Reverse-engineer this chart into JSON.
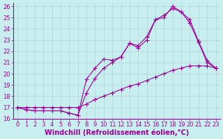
{
  "xlabel": "Windchill (Refroidissement éolien,°C)",
  "ylabel": "",
  "background_color": "#c8eef0",
  "grid_color": "#b0d4d8",
  "line_color": "#990099",
  "xlim": [
    -0.5,
    23.5
  ],
  "ylim": [
    16,
    26.3
  ],
  "xticks": [
    0,
    1,
    2,
    3,
    4,
    5,
    6,
    7,
    8,
    9,
    10,
    11,
    12,
    13,
    14,
    15,
    16,
    17,
    18,
    19,
    20,
    21,
    22,
    23
  ],
  "yticks": [
    16,
    17,
    18,
    19,
    20,
    21,
    22,
    23,
    24,
    25,
    26
  ],
  "line1_x": [
    0,
    1,
    2,
    3,
    4,
    5,
    6,
    7,
    8,
    9,
    10,
    11,
    12,
    13,
    14,
    15,
    16,
    17,
    18,
    19,
    20,
    21,
    22,
    23
  ],
  "line1_y": [
    17.0,
    16.8,
    16.7,
    16.7,
    16.7,
    16.7,
    16.5,
    16.3,
    18.3,
    19.6,
    20.5,
    21.0,
    21.5,
    22.7,
    22.3,
    23.0,
    24.8,
    25.0,
    26.0,
    25.5,
    24.5,
    22.8,
    21.0,
    20.5
  ],
  "line2_x": [
    0,
    1,
    2,
    3,
    4,
    5,
    6,
    7,
    8,
    9,
    10,
    11,
    12,
    13,
    14,
    15,
    16,
    17,
    18,
    19,
    20,
    21,
    22,
    23
  ],
  "line2_y": [
    17.0,
    16.8,
    16.7,
    16.7,
    16.7,
    16.7,
    16.5,
    16.3,
    19.5,
    20.5,
    21.3,
    21.2,
    21.5,
    22.7,
    22.5,
    23.3,
    24.8,
    25.2,
    25.8,
    25.5,
    24.8,
    22.9,
    21.2,
    20.5
  ],
  "line3_x": [
    0,
    1,
    2,
    3,
    4,
    5,
    6,
    7,
    8,
    9,
    10,
    11,
    12,
    13,
    14,
    15,
    16,
    17,
    18,
    19,
    20,
    21,
    22,
    23
  ],
  "line3_y": [
    17.0,
    17.0,
    17.0,
    17.0,
    17.0,
    17.0,
    17.0,
    17.0,
    17.3,
    17.7,
    18.0,
    18.3,
    18.6,
    18.9,
    19.1,
    19.4,
    19.7,
    20.0,
    20.3,
    20.5,
    20.7,
    20.7,
    20.7,
    20.5
  ],
  "tick_fontsize": 6,
  "xlabel_fontsize": 7,
  "marker": "P",
  "markersize": 2.5,
  "linewidth": 0.8
}
